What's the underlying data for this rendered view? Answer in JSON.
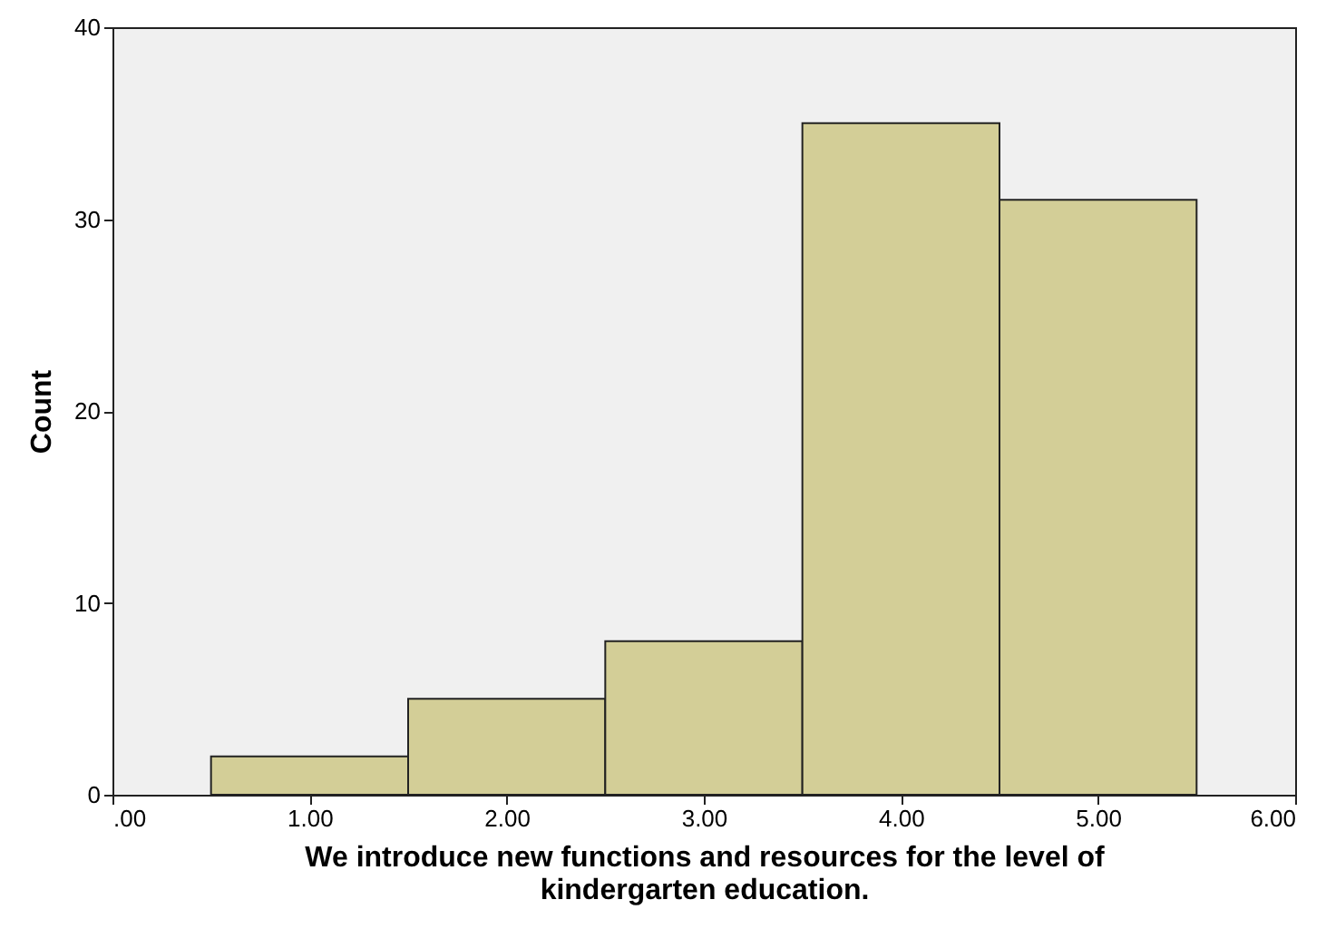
{
  "chart_data": {
    "type": "histogram",
    "xlabel": "We introduce new functions and resources for the level of kindergarten education.",
    "ylabel": "Count",
    "bins": [
      0.5,
      1.5,
      2.5,
      3.5,
      4.5,
      5.5
    ],
    "values": [
      2,
      5,
      8,
      35,
      31
    ],
    "color": "#d3ce97",
    "xlim": [
      0,
      6
    ],
    "xticks": [
      {
        "value": 0,
        "label": ".00"
      },
      {
        "value": 1,
        "label": "1.00"
      },
      {
        "value": 2,
        "label": "2.00"
      },
      {
        "value": 3,
        "label": "3.00"
      },
      {
        "value": 4,
        "label": "4.00"
      },
      {
        "value": 5,
        "label": "5.00"
      },
      {
        "value": 6,
        "label": "6.00"
      }
    ],
    "ylim": [
      0,
      40
    ],
    "yticks": [
      0,
      10,
      20,
      30,
      40
    ],
    "grid": false
  }
}
